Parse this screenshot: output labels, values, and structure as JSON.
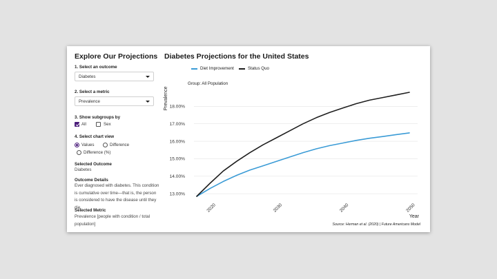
{
  "sidebar": {
    "title": "Explore Our Projections",
    "step1": {
      "label": "1. Select an outcome",
      "value": "Diabetes"
    },
    "step2": {
      "label": "2. Select a metric",
      "value": "Prevalence"
    },
    "step3": {
      "label": "3. Show subgroups by",
      "options": [
        {
          "label": "All",
          "checked": true
        },
        {
          "label": "Sex",
          "checked": false
        }
      ]
    },
    "step4": {
      "label": "4. Select chart view",
      "options": [
        {
          "label": "Values",
          "selected": true
        },
        {
          "label": "Difference",
          "selected": false
        },
        {
          "label": "Difference (%)",
          "selected": false
        }
      ]
    },
    "selected_outcome": {
      "heading": "Selected Outcome",
      "text": "Diabetes"
    },
    "outcome_details": {
      "heading": "Outcome Details",
      "text": "Ever diagnosed with diabetes. This condition is cumulative over time—that is, the person is considered to have the disease until they die."
    },
    "selected_metric": {
      "heading": "Selected Metric",
      "text": "Prevalence [people with condition / total population]"
    }
  },
  "main": {
    "title": "Diabetes Projections for the United States",
    "group_label": "Group: All Population",
    "source": "Source: Herman et al. (2020) | Future Americans Model"
  },
  "chart_data": {
    "type": "line",
    "title": "",
    "xlabel": "Year",
    "ylabel": "Prevalence",
    "x": [
      2018,
      2020,
      2022,
      2024,
      2026,
      2028,
      2030,
      2032,
      2034,
      2036,
      2038,
      2040,
      2042,
      2044,
      2046,
      2048,
      2050
    ],
    "series": [
      {
        "name": "Diet Improvement",
        "color": "#3a9bd6",
        "values": [
          12.85,
          13.3,
          13.7,
          14.05,
          14.35,
          14.6,
          14.85,
          15.1,
          15.35,
          15.57,
          15.75,
          15.9,
          16.05,
          16.17,
          16.27,
          16.38,
          16.48
        ]
      },
      {
        "name": "Status Quo",
        "color": "#1e1e1e",
        "values": [
          12.85,
          13.6,
          14.3,
          14.85,
          15.35,
          15.8,
          16.2,
          16.6,
          17.0,
          17.35,
          17.65,
          17.9,
          18.15,
          18.35,
          18.5,
          18.65,
          18.8
        ]
      }
    ],
    "xticks": [
      "2020",
      "2030",
      "2040",
      "2050"
    ],
    "yticks": [
      "13.00%",
      "14.00%",
      "15.00%",
      "16.00%",
      "17.00%",
      "18.00%"
    ],
    "ylim": [
      12.85,
      18.8
    ],
    "xlim": [
      2018,
      2050
    ],
    "grid": "horizontal",
    "legend_position": "top"
  }
}
